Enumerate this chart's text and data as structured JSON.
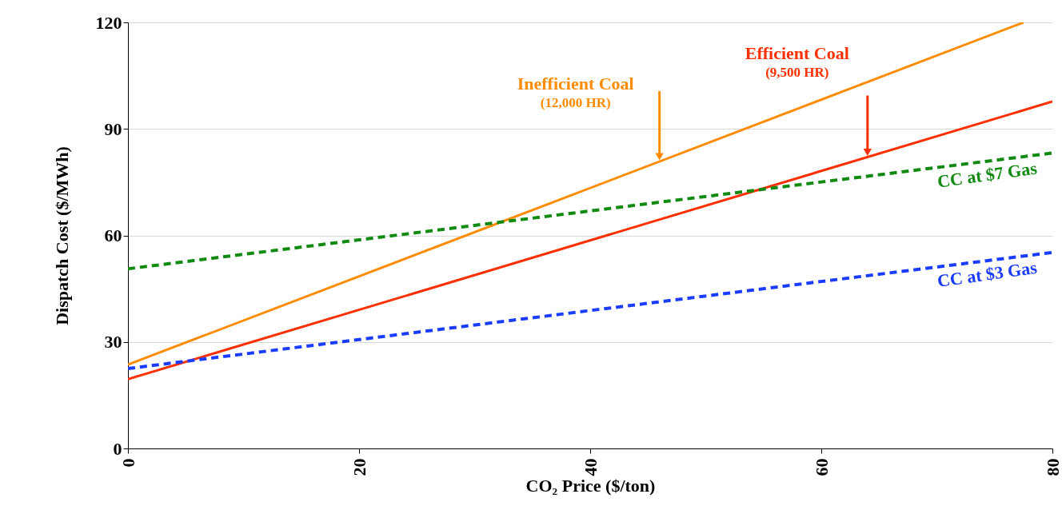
{
  "chart_data": {
    "type": "line",
    "xlabel": "CO₂ Price ($/ton)",
    "ylabel": "Dispatch Cost ($/MWh)",
    "xlim": [
      0,
      80
    ],
    "xticks": [
      0,
      20,
      40,
      60,
      80
    ],
    "ylim": [
      0,
      120
    ],
    "yticks": [
      0,
      30,
      60,
      90,
      120
    ],
    "grid": "y",
    "legend": false,
    "series": [
      {
        "name": "Inefficient Coal",
        "color": "#ff8c00",
        "x": [
          0,
          77.5
        ],
        "values": [
          23.6,
          120
        ],
        "line_style": "solid"
      },
      {
        "name": "Efficient Coal",
        "color": "#ff3000",
        "x": [
          0,
          80
        ],
        "values": [
          19.5,
          97.7
        ],
        "line_style": "solid"
      },
      {
        "name": "CC at $7 Gas",
        "color": "#108a10",
        "x": [
          0,
          80
        ],
        "values": [
          50.6,
          83.2
        ],
        "line_style": "dashed"
      },
      {
        "name": "CC at $3 Gas",
        "color": "#1a3cff",
        "x": [
          0,
          80
        ],
        "values": [
          22.5,
          55.2
        ],
        "line_style": "dashed"
      }
    ],
    "annotations": [
      "(12,000 HR)",
      "(9,500 HR)"
    ]
  }
}
